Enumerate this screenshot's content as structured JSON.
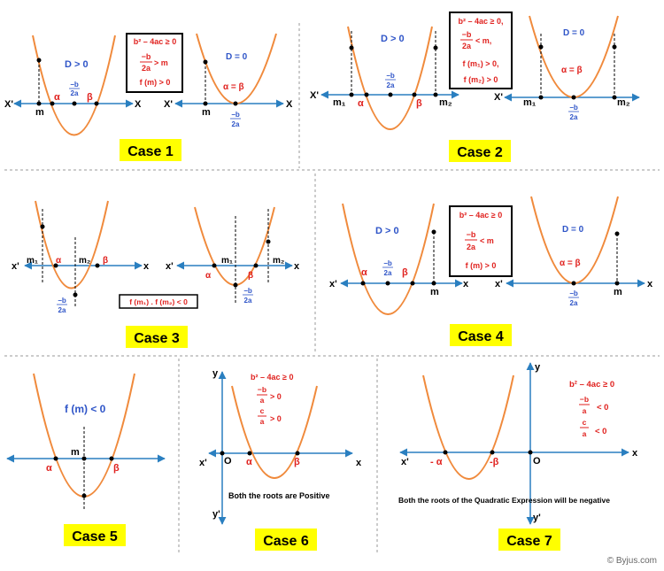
{
  "colors": {
    "curve": "#f08a3c",
    "axis": "#2a7fc0",
    "red": "#e0221f",
    "blue": "#2f55c8",
    "case_label_bg": "#ffff00",
    "divider": "#999999"
  },
  "labels": {
    "x": "X",
    "xp": "X'",
    "xs": "x",
    "xps": "x'",
    "y": "y",
    "yp": "y'",
    "o": "O",
    "m": "m",
    "m1": "m₁",
    "m2": "m₂",
    "alpha": "α",
    "beta": "β",
    "neg_alpha": "- α",
    "neg_beta": "-β",
    "minus_b": "−b",
    "two_a": "2a",
    "c": "c",
    "a": "a",
    "d_pos": "D > 0",
    "d_zero": "D = 0",
    "alpha_eq_beta": "α = β"
  },
  "cases": [
    {
      "label": "Case 1",
      "conditions": [
        "b² – 4ac ≥ 0",
        "f (m) > 0"
      ],
      "frac_suffix": "> m"
    },
    {
      "label": "Case 2",
      "conditions": [
        "b² – 4ac ≥ 0,",
        "f (m₁) > 0,",
        "f (m₂) > 0"
      ],
      "frac_suffix": "< m,"
    },
    {
      "label": "Case 3",
      "conditions": [
        "f (m₁) . f (m₂) < 0"
      ]
    },
    {
      "label": "Case 4",
      "conditions": [
        "b² – 4ac ≥ 0",
        "f (m) > 0"
      ],
      "frac_suffix": "< m"
    },
    {
      "label": "Case 5",
      "conditions": [
        "f (m) < 0"
      ]
    },
    {
      "label": "Case 6",
      "conditions": [
        "b² – 4ac ≥ 0",
        "> 0",
        "> 0"
      ],
      "note": "Both the roots are Positive"
    },
    {
      "label": "Case 7",
      "conditions": [
        "b² – 4ac ≥ 0",
        "< 0",
        "< 0"
      ],
      "note": "Both the roots of the Quadratic  Expression will be negative"
    }
  ],
  "credit": "© Byjus.com"
}
